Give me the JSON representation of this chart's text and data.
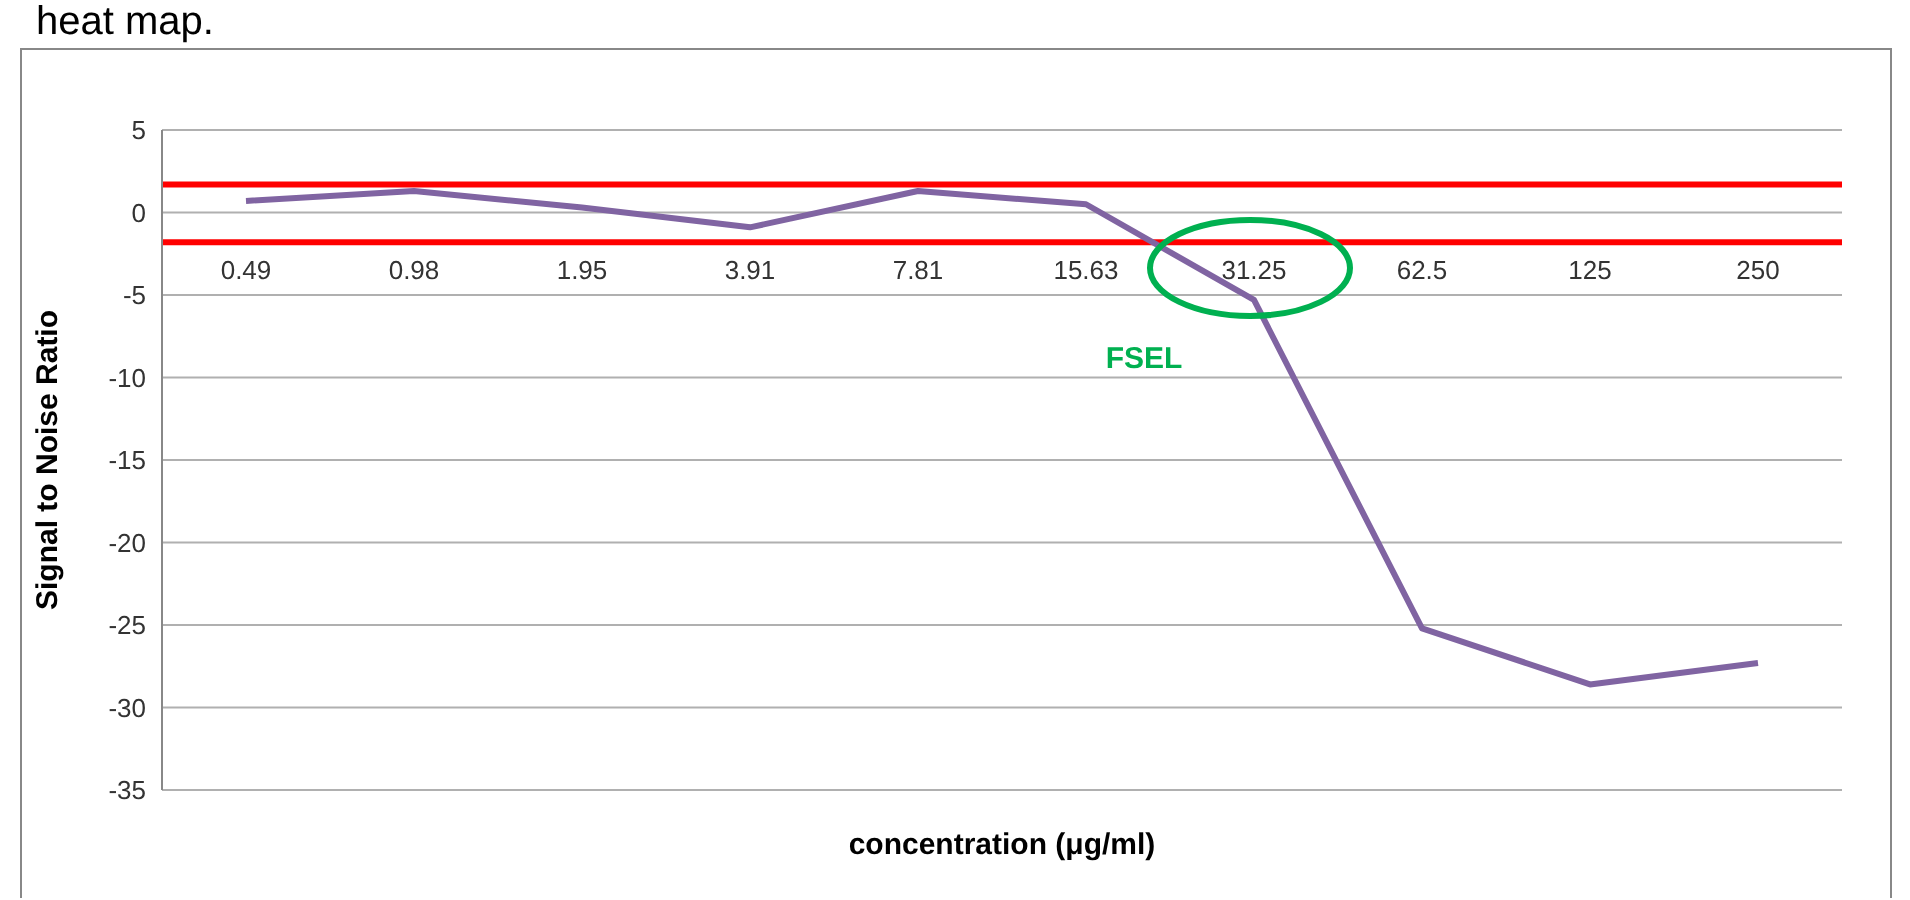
{
  "chart_data": {
    "type": "line",
    "xlabel": "concentration (μg/ml)",
    "ylabel": "Signal to Noise Ratio",
    "categories": [
      "0.49",
      "0.98",
      "1.95",
      "3.91",
      "7.81",
      "15.63",
      "31.25",
      "62.5",
      "125",
      "250"
    ],
    "series": [
      {
        "color": "#8064a2",
        "values": [
          0.7,
          1.3,
          0.3,
          -0.9,
          1.3,
          0.5,
          -5.3,
          -25.2,
          -28.6,
          -27.3
        ]
      }
    ],
    "ylim": [
      -35,
      5
    ],
    "yticks": [
      -35,
      -30,
      -25,
      -20,
      -15,
      -10,
      -5,
      0,
      5
    ],
    "grid": "y",
    "marker": "none",
    "line_style": "solid",
    "legend": false,
    "ref_lines": [
      {
        "axis": "y",
        "value": 1.7,
        "color": "#ff0000"
      },
      {
        "axis": "y",
        "value": -1.8,
        "color": "#ff0000"
      }
    ],
    "annotations": [
      "heat map.",
      {
        "text": "FSEL",
        "x": "31.25",
        "y": -5.3
      }
    ]
  }
}
